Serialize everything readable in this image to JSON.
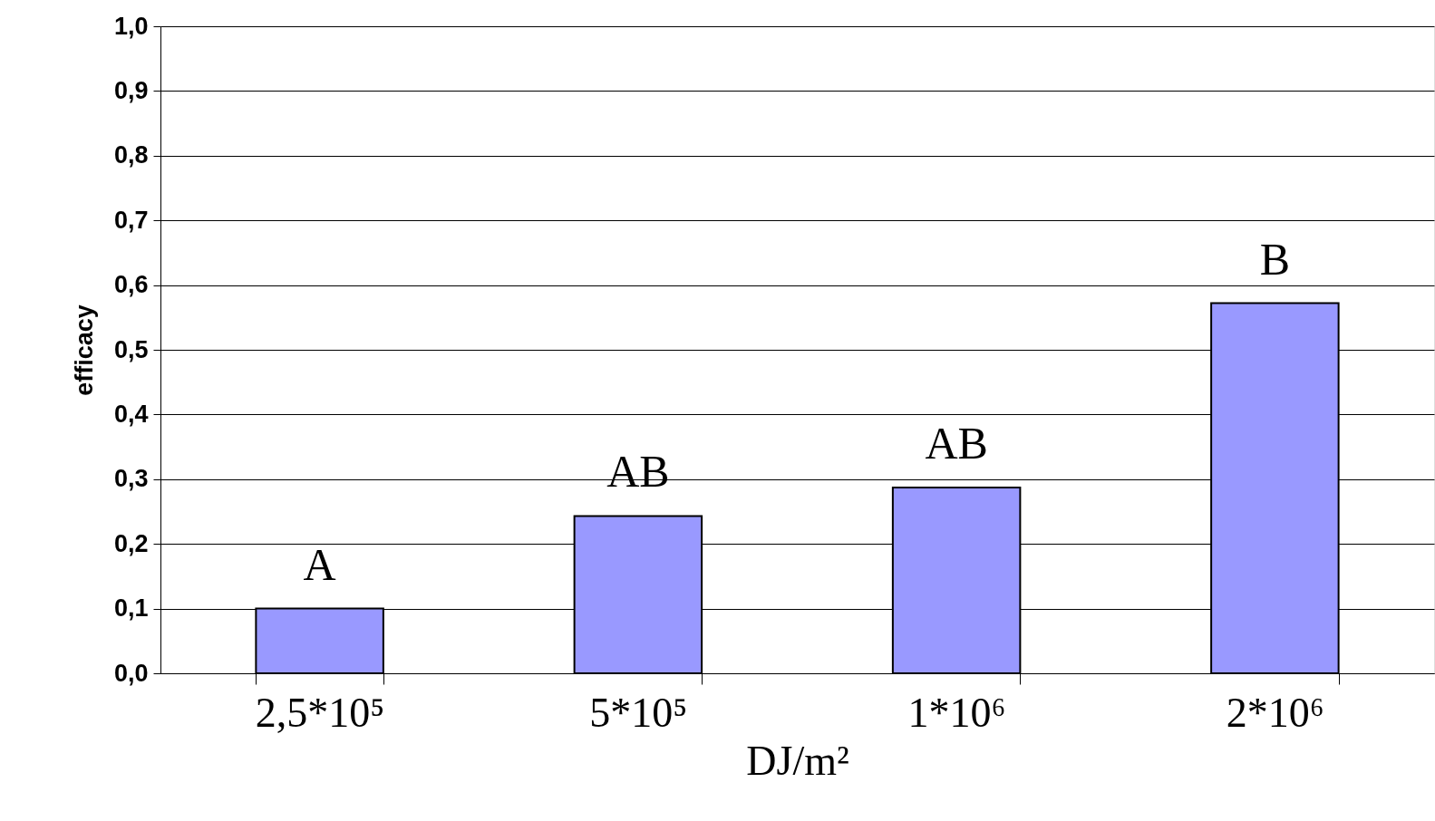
{
  "chart_data": {
    "type": "bar",
    "categories": [
      "2,5*10⁵",
      "5*10⁵",
      "1*10⁶",
      "2*10⁶"
    ],
    "values": [
      0.1,
      0.243,
      0.287,
      0.572
    ],
    "color": "#9999ff",
    "xlabel": "DJ/m²",
    "ylabel": "efficacy",
    "ylim": [
      0,
      1
    ],
    "yticks": [
      {
        "value": 0,
        "label": "0,0"
      },
      {
        "value": 0.1,
        "label": "0,1"
      },
      {
        "value": 0.2,
        "label": "0,2"
      },
      {
        "value": 0.3,
        "label": "0,3"
      },
      {
        "value": 0.4,
        "label": "0,4"
      },
      {
        "value": 0.5,
        "label": "0,5"
      },
      {
        "value": 0.6,
        "label": "0,6"
      },
      {
        "value": 0.7,
        "label": "0,7"
      },
      {
        "value": 0.8,
        "label": "0,8"
      },
      {
        "value": 0.9,
        "label": "0,9"
      },
      {
        "value": 1,
        "label": "1,0"
      }
    ],
    "grid": "y",
    "annotations": [
      "A",
      "AB",
      "AB",
      "B"
    ]
  }
}
